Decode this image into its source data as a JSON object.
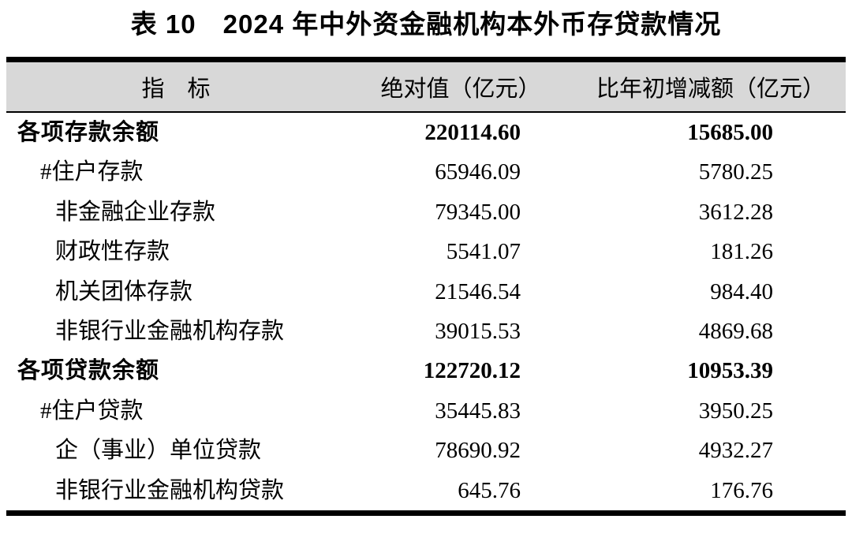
{
  "title": "表 10　2024 年中外资金融机构本外币存贷款情况",
  "table": {
    "columns": {
      "indicator": "指　标",
      "absolute": "绝对值（亿元）",
      "change": "比年初增减额（亿元）"
    },
    "rows": [
      {
        "indicator": "各项存款余额",
        "absolute": "220114.60",
        "change": "15685.00",
        "bold": true,
        "indent": 0
      },
      {
        "indicator": "#住户存款",
        "absolute": "65946.09",
        "change": "5780.25",
        "bold": false,
        "indent": 1
      },
      {
        "indicator": "非金融企业存款",
        "absolute": "79345.00",
        "change": "3612.28",
        "bold": false,
        "indent": 2
      },
      {
        "indicator": "财政性存款",
        "absolute": "5541.07",
        "change": "181.26",
        "bold": false,
        "indent": 2
      },
      {
        "indicator": "机关团体存款",
        "absolute": "21546.54",
        "change": "984.40",
        "bold": false,
        "indent": 2
      },
      {
        "indicator": "非银行业金融机构存款",
        "absolute": "39015.53",
        "change": "4869.68",
        "bold": false,
        "indent": 2
      },
      {
        "indicator": "各项贷款余额",
        "absolute": "122720.12",
        "change": "10953.39",
        "bold": true,
        "indent": 0
      },
      {
        "indicator": "#住户贷款",
        "absolute": "35445.83",
        "change": "3950.25",
        "bold": false,
        "indent": 1
      },
      {
        "indicator": "企（事业）单位贷款",
        "absolute": "78690.92",
        "change": "4932.27",
        "bold": false,
        "indent": 2
      },
      {
        "indicator": "非银行业金融机构贷款",
        "absolute": "645.76",
        "change": "176.76",
        "bold": false,
        "indent": 2
      }
    ]
  },
  "colors": {
    "header_bg": "#d8d8d8",
    "border": "#000000",
    "text": "#000000",
    "page_bg": "#ffffff"
  },
  "units": "亿元"
}
